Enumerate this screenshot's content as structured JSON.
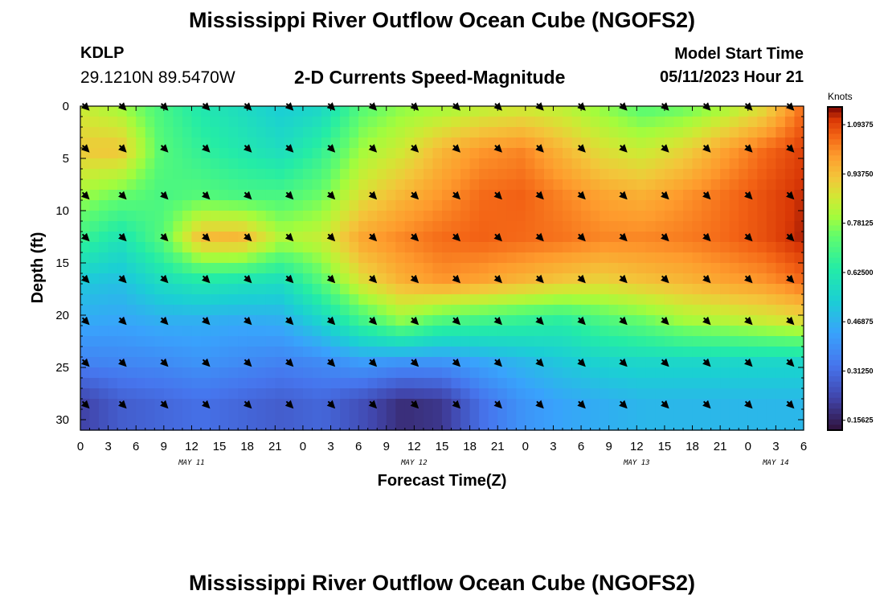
{
  "header": {
    "title": "Mississippi River Outflow Ocean Cube (NGOFS2)",
    "station_id": "KDLP",
    "coords": "29.1210N  89.5470W",
    "subtitle": "2-D Currents Speed-Magnitude",
    "model_label": "Model Start Time",
    "model_time": "05/11/2023 Hour 21"
  },
  "footer": {
    "title": "Mississippi River Outflow Ocean Cube (NGOFS2)"
  },
  "chart_data": {
    "type": "heatmap",
    "title": "2-D Currents Speed-Magnitude",
    "xlabel": "Forecast Time(Z)",
    "ylabel": "Depth (ft)",
    "x_range_hours": [
      0,
      78
    ],
    "y_range_ft": [
      0,
      31
    ],
    "x_tick_labels": [
      "0",
      "3",
      "6",
      "9",
      "12",
      "15",
      "18",
      "21",
      "0",
      "3",
      "6",
      "9",
      "12",
      "15",
      "18",
      "21",
      "0",
      "3",
      "6",
      "9",
      "12",
      "15",
      "18",
      "21",
      "0",
      "3",
      "6"
    ],
    "y_ticks": [
      0,
      5,
      10,
      15,
      20,
      25,
      30
    ],
    "date_labels": [
      {
        "label": "MAY 11",
        "hour": 12
      },
      {
        "label": "MAY 12",
        "hour": 36
      },
      {
        "label": "MAY 13",
        "hour": 60
      },
      {
        "label": "MAY 14",
        "hour": 75
      }
    ],
    "colorbar": {
      "unit": "Knots",
      "min": 0.125,
      "max": 1.15,
      "labels": [
        "1.09375",
        "0.93750",
        "0.78125",
        "0.62500",
        "0.46875",
        "0.31250",
        "0.15625"
      ]
    },
    "depths_ft": [
      0,
      4.2,
      8.5,
      12.7,
      16.8,
      20.6,
      24.5,
      28.3
    ],
    "times_hr": [
      0,
      4.3,
      8.7,
      13,
      17.3,
      21.7,
      26,
      30.3,
      34.7,
      39,
      43.3,
      47.7,
      52,
      56.3,
      60.7,
      65,
      69.3,
      73.7,
      78
    ],
    "speed_knots": [
      [
        0.85,
        0.8,
        0.7,
        0.62,
        0.58,
        0.53,
        0.56,
        0.72,
        0.78,
        0.8,
        0.83,
        0.85,
        0.83,
        0.78,
        0.72,
        0.74,
        0.8,
        0.88,
        1.05
      ],
      [
        0.92,
        0.93,
        0.72,
        0.66,
        0.62,
        0.58,
        0.66,
        0.8,
        0.86,
        0.95,
        1.0,
        1.02,
        0.95,
        0.88,
        0.85,
        0.9,
        0.98,
        1.05,
        1.1
      ],
      [
        0.8,
        0.75,
        0.7,
        0.72,
        0.7,
        0.7,
        0.75,
        0.88,
        0.95,
        1.0,
        1.05,
        1.06,
        1.02,
        0.98,
        0.96,
        1.0,
        1.04,
        1.08,
        1.12
      ],
      [
        0.68,
        0.6,
        0.72,
        0.95,
        0.96,
        0.82,
        0.85,
        0.98,
        1.02,
        1.05,
        1.06,
        1.05,
        1.04,
        1.02,
        1.02,
        1.03,
        1.05,
        1.08,
        1.13
      ],
      [
        0.52,
        0.5,
        0.58,
        0.62,
        0.6,
        0.58,
        0.72,
        0.88,
        0.96,
        1.0,
        0.98,
        0.95,
        0.92,
        0.9,
        0.93,
        0.95,
        0.98,
        1.0,
        1.05
      ],
      [
        0.45,
        0.44,
        0.46,
        0.46,
        0.45,
        0.46,
        0.55,
        0.68,
        0.78,
        0.7,
        0.68,
        0.66,
        0.64,
        0.7,
        0.74,
        0.8,
        0.82,
        0.85,
        0.88
      ],
      [
        0.36,
        0.37,
        0.38,
        0.4,
        0.38,
        0.36,
        0.38,
        0.42,
        0.4,
        0.4,
        0.44,
        0.48,
        0.52,
        0.55,
        0.56,
        0.56,
        0.56,
        0.56,
        0.56
      ],
      [
        0.22,
        0.28,
        0.3,
        0.32,
        0.3,
        0.28,
        0.3,
        0.25,
        0.18,
        0.2,
        0.32,
        0.4,
        0.44,
        0.46,
        0.48,
        0.48,
        0.48,
        0.48,
        0.48
      ]
    ],
    "arrow_depths_ft": [
      0,
      4,
      8.5,
      12.5,
      16.5,
      20.5,
      24.5,
      28.5
    ],
    "arrow_hours": [
      0.5,
      4.5,
      9,
      13.5,
      18,
      22.5,
      27,
      31.5,
      36,
      40.5,
      45,
      49.5,
      54,
      58.5,
      63,
      67.5,
      72,
      76.5
    ],
    "arrow_direction_deg_cw_from_east": 45
  }
}
